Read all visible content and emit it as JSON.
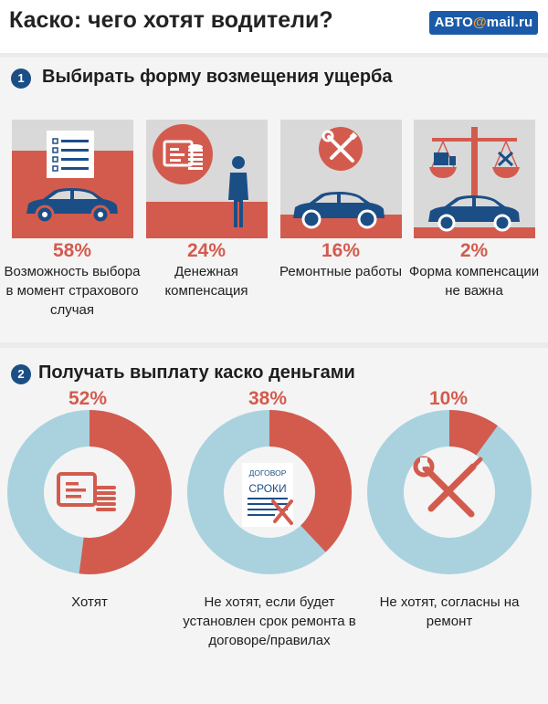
{
  "header": {
    "title": "Каско: чего хотят водители?",
    "logo_prefix": "АВТО",
    "logo_at": "@",
    "logo_suffix": "mail.ru"
  },
  "colors": {
    "accent": "#d35b4e",
    "secondary": "#a9d2de",
    "card_bg": "#d9d9d9",
    "icon_dark": "#1c4e86"
  },
  "section1": {
    "number": "1",
    "title": "Выбирать форму возмещения ущерба",
    "items": [
      {
        "percent": "58%",
        "label": "Возможность выбора в момент страхового случая",
        "icon": "checklist-car-icon"
      },
      {
        "percent": "24%",
        "label": "Денежная компенсация",
        "icon": "money-person-icon"
      },
      {
        "percent": "16%",
        "label": "Ремонтные работы",
        "icon": "wrench-car-icon"
      },
      {
        "percent": "2%",
        "label": "Форма компенсации не важна",
        "icon": "scales-car-icon"
      }
    ]
  },
  "section2": {
    "number": "2",
    "title": "Получать выплату каско деньгами",
    "items": [
      {
        "percent": "52%",
        "label": "Хотят",
        "icon": "money-icon"
      },
      {
        "percent": "38%",
        "label": "Не хотят, если будет установлен срок ремонта в договоре/правилах",
        "icon": "contract-tools-icon",
        "doc_line1": "ДОГОВОР",
        "doc_line2": "СРОКИ"
      },
      {
        "percent": "10%",
        "label": "Не хотят, согласны на ремонт",
        "icon": "wrench-screwdriver-icon"
      }
    ]
  },
  "chart_data": [
    {
      "type": "bar",
      "title": "Выбирать форму возмещения ущерба",
      "categories": [
        "Возможность выбора в момент страхового случая",
        "Денежная компенсация",
        "Ремонтные работы",
        "Форма компенсации не важна"
      ],
      "values": [
        58,
        24,
        16,
        2
      ],
      "ylim": [
        0,
        100
      ],
      "grid": false
    },
    {
      "type": "pie",
      "title": "Получать выплату каско деньгами",
      "categories": [
        "Хотят",
        "Не хотят, если будет установлен срок ремонта в договоре/правилах",
        "Не хотят, согласны на ремонт"
      ],
      "values": [
        52,
        38,
        10
      ]
    }
  ]
}
